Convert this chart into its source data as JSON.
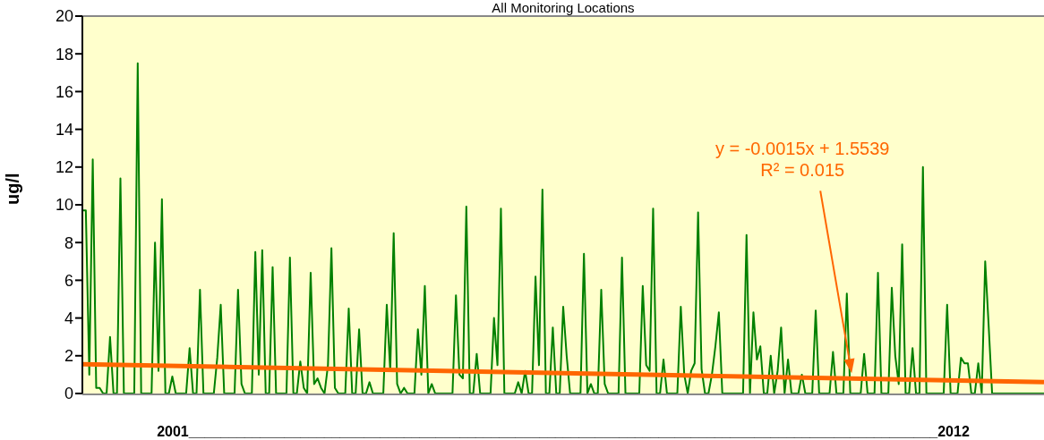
{
  "chart_data": {
    "type": "line",
    "title": "All Monitoring Locations",
    "xlabel": "2001______________________________________________________________________________________________2012",
    "ylabel": "ug/l",
    "ylim": [
      0,
      20
    ],
    "yticks": [
      0,
      2,
      4,
      6,
      8,
      10,
      12,
      14,
      16,
      18,
      20
    ],
    "tick_labels": "y",
    "categories": [
      null,
      null,
      null,
      null,
      null,
      null,
      null,
      null,
      null,
      null,
      null,
      null,
      null,
      null,
      null,
      null,
      null,
      null,
      null,
      null,
      null,
      null,
      null,
      null,
      null,
      null,
      null,
      null,
      null,
      null,
      null,
      null,
      null,
      null,
      null,
      null,
      null,
      null,
      null,
      null,
      null,
      null,
      null,
      null,
      null,
      null,
      null,
      null,
      null,
      null,
      null,
      null,
      null,
      null,
      null,
      null,
      null,
      null,
      null,
      null,
      null,
      null,
      null,
      null,
      null,
      null,
      null,
      null,
      null,
      null,
      null,
      null,
      null,
      null,
      null,
      null,
      null,
      null,
      null,
      null,
      null,
      null,
      null,
      null,
      null,
      null,
      null,
      null,
      null,
      null,
      null,
      null,
      null,
      null,
      null,
      null,
      null,
      null,
      null,
      null,
      null,
      null,
      null,
      null,
      null,
      null,
      null,
      null,
      null,
      null,
      null,
      null,
      null,
      null,
      null,
      null,
      null,
      null,
      null,
      null,
      null,
      null,
      null,
      null,
      null,
      null,
      null,
      null,
      null,
      null,
      null,
      null,
      null,
      null,
      null,
      null,
      null,
      null,
      null,
      null,
      null,
      null,
      null,
      null,
      null,
      null,
      null,
      null,
      null,
      null,
      null,
      null,
      null,
      null,
      null,
      null,
      null,
      null,
      null,
      null,
      null,
      null,
      null,
      null,
      null,
      null,
      null,
      null,
      null,
      null,
      null,
      null,
      null,
      null,
      null,
      null,
      null,
      null,
      null,
      null,
      null,
      null,
      null,
      null,
      null,
      null,
      null,
      null,
      null,
      null,
      null,
      null,
      null,
      null,
      null,
      null,
      null,
      null,
      null,
      null,
      null,
      null,
      null,
      null,
      null,
      null,
      null,
      null,
      null,
      null,
      null,
      null,
      null,
      null,
      null,
      null,
      null,
      null,
      null,
      null,
      null,
      null,
      null,
      null,
      null,
      null,
      null,
      null,
      null,
      null,
      null,
      null,
      null,
      null,
      null,
      null,
      null,
      null,
      null,
      null,
      null,
      null,
      null,
      null,
      null,
      null,
      null,
      null,
      null,
      null,
      null,
      null,
      null,
      null,
      null,
      null,
      null,
      null,
      null,
      null,
      null,
      null,
      null,
      null,
      null,
      null,
      null,
      null,
      null,
      null,
      null,
      null,
      null,
      null,
      null,
      null,
      null,
      null,
      null
    ],
    "series": [
      {
        "color": "#008000",
        "values": [
          9.7,
          9.7,
          1,
          12.4,
          0.3,
          0.3,
          0,
          0,
          3,
          0,
          0,
          11.4,
          0,
          0,
          0,
          0,
          17.5,
          0,
          0,
          0,
          0,
          8,
          1.2,
          10.3,
          0,
          0,
          0.9,
          0,
          0,
          0,
          0,
          2.4,
          0,
          0,
          5.5,
          0,
          0,
          0,
          0,
          1.9,
          4.7,
          0,
          0,
          0,
          0,
          5.5,
          0.5,
          0,
          0,
          0,
          7.5,
          1,
          7.6,
          0,
          0,
          6.7,
          0,
          0,
          0,
          0,
          7.2,
          0,
          0,
          1.7,
          0.3,
          0,
          6.4,
          0.5,
          0.8,
          0.3,
          0,
          1.5,
          7.7,
          0.3,
          0,
          0,
          0,
          4.5,
          0,
          0,
          3.4,
          0,
          0,
          0.6,
          0,
          0,
          0,
          0,
          4.7,
          1.2,
          8.5,
          0.5,
          0,
          0.3,
          0,
          0,
          0,
          3.4,
          1,
          5.7,
          0,
          0.5,
          0,
          0,
          0,
          0,
          0,
          0,
          5.2,
          1,
          0.8,
          9.9,
          0,
          0,
          2.1,
          0,
          0,
          0,
          0,
          4,
          1.5,
          9.8,
          0,
          0,
          0,
          0,
          0.6,
          0,
          1.2,
          0,
          0,
          6.2,
          1.5,
          10.8,
          0,
          0,
          3.5,
          0,
          0,
          4.6,
          2,
          0,
          0,
          0,
          0,
          7.4,
          0,
          0.5,
          0,
          0,
          5.5,
          0.5,
          0,
          0,
          0,
          0,
          7.2,
          0,
          0,
          0,
          0,
          0,
          5.7,
          1.5,
          1.2,
          9.8,
          0,
          0,
          1.8,
          0,
          0,
          0,
          0,
          4.6,
          1,
          0,
          1.2,
          1.6,
          9.6,
          1.3,
          0,
          0,
          1,
          2.5,
          4.3,
          0,
          0,
          0,
          0,
          0,
          0,
          0,
          8.4,
          0,
          4.3,
          1.8,
          2.5,
          0,
          0,
          2,
          0,
          1.2,
          3.5,
          0,
          1.8,
          0,
          0,
          0,
          1,
          0,
          0,
          0,
          4.4,
          0,
          0,
          0,
          0,
          2.2,
          0,
          0,
          0,
          5.3,
          0,
          0,
          0,
          0,
          2.1,
          0,
          0,
          0,
          6.4,
          0,
          0,
          0,
          5.6,
          2,
          0.5,
          7.9,
          0,
          0,
          2.4,
          0,
          0,
          12,
          0,
          0,
          0,
          0,
          0,
          0,
          4.7,
          0,
          0,
          0,
          1.9,
          1.6,
          1.6,
          0,
          0,
          1.6,
          0,
          7,
          3.6,
          0,
          0,
          0,
          0,
          0,
          0,
          0,
          0,
          0,
          0,
          0,
          0,
          0,
          0,
          0,
          0
        ]
      },
      {
        "color": "#ff6600",
        "values": [
          1.55,
          null,
          null,
          null,
          null,
          null,
          null,
          null,
          null,
          null,
          null,
          null,
          null,
          null,
          null,
          null,
          null,
          null,
          null,
          null,
          null,
          null,
          null,
          null,
          null,
          null,
          null,
          null,
          null,
          null,
          null,
          null,
          null,
          null,
          null,
          null,
          null,
          null,
          null,
          null,
          null,
          null,
          null,
          null,
          null,
          null,
          null,
          null,
          null,
          null,
          null,
          null,
          null,
          null,
          null,
          null,
          null,
          null,
          null,
          null,
          null,
          null,
          null,
          null,
          null,
          null,
          null,
          null,
          null,
          null,
          null,
          null,
          null,
          null,
          null,
          null,
          null,
          null,
          null,
          null,
          null,
          null,
          null,
          null,
          null,
          null,
          null,
          null,
          null,
          null,
          null,
          null,
          null,
          null,
          null,
          null,
          null,
          null,
          null,
          null,
          null,
          null,
          null,
          null,
          null,
          null,
          null,
          null,
          null,
          null,
          null,
          null,
          null,
          null,
          null,
          null,
          null,
          null,
          null,
          null,
          null,
          null,
          null,
          null,
          null,
          null,
          null,
          null,
          null,
          null,
          null,
          null,
          null,
          null,
          null,
          null,
          null,
          null,
          null,
          null,
          null,
          null,
          null,
          null,
          null,
          null,
          null,
          null,
          null,
          null,
          null,
          null,
          null,
          null,
          null,
          null,
          null,
          null,
          null,
          null,
          null,
          null,
          null,
          null,
          null,
          null,
          null,
          null,
          null,
          null,
          null,
          null,
          null,
          null,
          null,
          null,
          null,
          null,
          null,
          null,
          null,
          null,
          null,
          null,
          null,
          null,
          null,
          null,
          null,
          null,
          null,
          null,
          null,
          null,
          null,
          null,
          null,
          null,
          null,
          null,
          null,
          null,
          null,
          null,
          null,
          null,
          null,
          null,
          null,
          null,
          null,
          null,
          null,
          null,
          null,
          null,
          null,
          null,
          null,
          null,
          null,
          null,
          null,
          null,
          null,
          null,
          null,
          null,
          null,
          null,
          null,
          null,
          null,
          null,
          null,
          null,
          null,
          null,
          null,
          null,
          null,
          null,
          null,
          null,
          null,
          null,
          null,
          null,
          null,
          null,
          null,
          null,
          null,
          null,
          null,
          null,
          null,
          null,
          null,
          null,
          null,
          null,
          null,
          null,
          null,
          null,
          null,
          null,
          null,
          null,
          null,
          null,
          null,
          null,
          null,
          null,
          null,
          null,
          0.6
        ]
      }
    ],
    "annotations": [
      "y = -0.0015x + 1.5539\nR² = 0.015"
    ]
  }
}
